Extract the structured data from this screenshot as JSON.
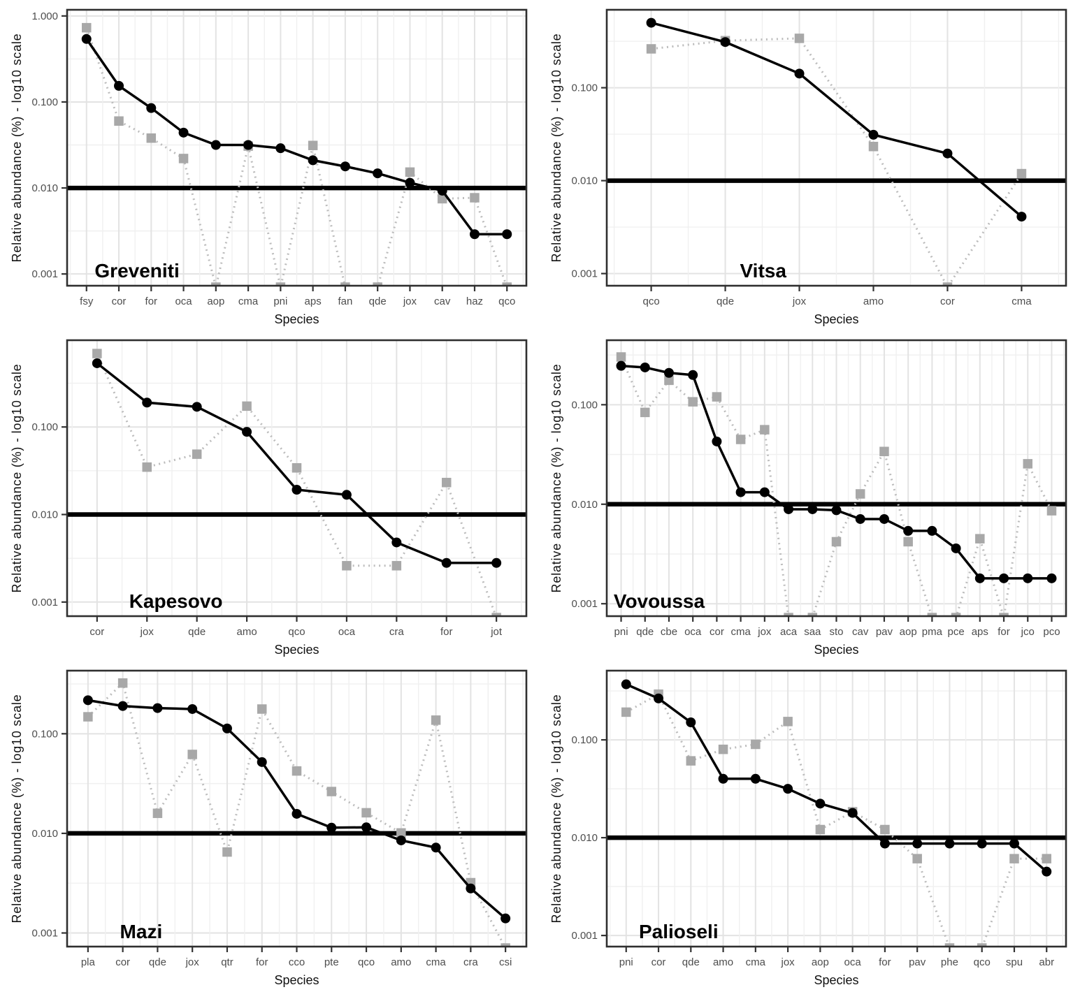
{
  "figure": {
    "xlabel": "Species",
    "ylabel": "Relative abundance (%) - log10 scale",
    "reference_line_y": 0.01,
    "layout": "2x3 grid of line panels, log10 y axis, thick black reference line at 0.010",
    "colors": {
      "black_series": "#000000",
      "gray_marker": "#a8a8a8",
      "gray_line": "#bcbcbc",
      "grid_major": "#e3e3e3",
      "grid_minor": "#f0f0f0",
      "panel_border": "#2f2f2f",
      "tick_label": "#4d4d4d",
      "background": "#ffffff"
    },
    "null_meaning": "gray-square series point plotted off-scale low, clipped at bottom panel edge"
  },
  "chart_data": [
    {
      "type": "line",
      "title": "Greveniti",
      "xlabel": "Species",
      "ylabel": "Relative abundance (%) - log10 scale",
      "x_categories": [
        "fsy",
        "cor",
        "for",
        "oca",
        "aop",
        "cma",
        "pni",
        "aps",
        "fan",
        "qde",
        "jox",
        "cav",
        "haz",
        "qco"
      ],
      "series": [
        {
          "name": "solid-black-circles",
          "marker": "circle",
          "style": "solid",
          "color": "#000000",
          "values": [
            0.54,
            0.154,
            0.085,
            0.044,
            0.0316,
            0.0316,
            0.029,
            0.021,
            0.0178,
            0.0148,
            0.0115,
            0.0093,
            0.0029,
            0.0029
          ]
        },
        {
          "name": "dotted-gray-squares",
          "marker": "square",
          "style": "dotted",
          "color": "#a8a8a8",
          "values": [
            0.73,
            0.06,
            0.038,
            0.022,
            null,
            0.0307,
            null,
            0.0312,
            null,
            null,
            0.0153,
            0.0075,
            0.0077,
            null
          ]
        }
      ],
      "ylim": [
        0.00073,
        1.18
      ],
      "yticks": [
        1,
        0.1,
        0.01,
        0.001
      ],
      "ytick_labels": [
        "1.000",
        "0.100",
        "0.010",
        "0.001"
      ],
      "reference_line": 0.01,
      "title_x_frac": 0.06
    },
    {
      "type": "line",
      "title": "Vitsa",
      "xlabel": "Species",
      "ylabel": "Relative abundance (%) - log10 scale",
      "x_categories": [
        "qco",
        "qde",
        "jox",
        "amo",
        "cor",
        "cma"
      ],
      "series": [
        {
          "name": "solid-black-circles",
          "marker": "circle",
          "style": "solid",
          "color": "#000000",
          "values": [
            0.5,
            0.31,
            0.142,
            0.0312,
            0.0196,
            0.0041
          ]
        },
        {
          "name": "dotted-gray-squares",
          "marker": "square",
          "style": "dotted",
          "color": "#a8a8a8",
          "values": [
            0.262,
            0.321,
            0.34,
            0.0233,
            null,
            0.0119
          ]
        }
      ],
      "ylim": [
        0.00074,
        0.69
      ],
      "yticks": [
        0.1,
        0.01,
        0.001
      ],
      "ytick_labels": [
        "0.100",
        "0.010",
        "0.001"
      ],
      "reference_line": 0.01,
      "title_x_frac": 0.29
    },
    {
      "type": "line",
      "title": "Kapesovo",
      "xlabel": "Species",
      "ylabel": "Relative abundance (%) - log10 scale",
      "x_categories": [
        "cor",
        "jox",
        "qde",
        "amo",
        "qco",
        "oca",
        "cra",
        "for",
        "jot"
      ],
      "series": [
        {
          "name": "solid-black-circles",
          "marker": "circle",
          "style": "solid",
          "color": "#000000",
          "values": [
            0.535,
            0.19,
            0.17,
            0.088,
            0.0192,
            0.0168,
            0.0048,
            0.0028,
            0.0028
          ]
        },
        {
          "name": "dotted-gray-squares",
          "marker": "square",
          "style": "dotted",
          "color": "#a8a8a8",
          "values": [
            0.69,
            0.0348,
            0.0489,
            0.173,
            0.0341,
            0.0026,
            0.0026,
            0.0232,
            null
          ]
        }
      ],
      "ylim": [
        0.00069,
        0.98
      ],
      "yticks": [
        0.1,
        0.01,
        0.001
      ],
      "ytick_labels": [
        "0.100",
        "0.010",
        "0.001"
      ],
      "reference_line": 0.01,
      "title_x_frac": 0.135
    },
    {
      "type": "line",
      "title": "Vovoussa",
      "xlabel": "Species",
      "ylabel": "Relative abundance (%) - log10 scale",
      "x_categories": [
        "pni",
        "qde",
        "cbe",
        "oca",
        "cor",
        "cma",
        "jox",
        "aca",
        "saa",
        "sto",
        "cav",
        "pav",
        "aop",
        "pma",
        "pce",
        "aps",
        "for",
        "jco",
        "pco"
      ],
      "series": [
        {
          "name": "solid-black-circles",
          "marker": "circle",
          "style": "solid",
          "color": "#000000",
          "values": [
            0.246,
            0.237,
            0.209,
            0.199,
            0.0427,
            0.0132,
            0.0132,
            0.0089,
            0.0089,
            0.0087,
            0.0071,
            0.0071,
            0.0054,
            0.0054,
            0.0036,
            0.0018,
            0.0018,
            0.0018,
            0.0018
          ]
        },
        {
          "name": "dotted-gray-squares",
          "marker": "square",
          "style": "dotted",
          "color": "#a8a8a8",
          "values": [
            0.302,
            0.0837,
            0.176,
            0.107,
            0.12,
            0.0448,
            0.0561,
            null,
            null,
            0.0042,
            0.0127,
            0.0339,
            0.0042,
            null,
            null,
            0.0045,
            null,
            0.0255,
            0.0086
          ]
        }
      ],
      "ylim": [
        0.00075,
        0.445
      ],
      "yticks": [
        0.1,
        0.01,
        0.001
      ],
      "ytick_labels": [
        "0.100",
        "0.010",
        "0.001"
      ],
      "reference_line": 0.01,
      "title_x_frac": 0.015
    },
    {
      "type": "line",
      "title": "Mazi",
      "xlabel": "Species",
      "ylabel": "Relative abundance (%) - log10 scale",
      "x_categories": [
        "pla",
        "cor",
        "qde",
        "jox",
        "qtr",
        "for",
        "cco",
        "pte",
        "qco",
        "amo",
        "cma",
        "cra",
        "csi"
      ],
      "series": [
        {
          "name": "solid-black-circles",
          "marker": "circle",
          "style": "solid",
          "color": "#000000",
          "values": [
            0.217,
            0.19,
            0.181,
            0.177,
            0.113,
            0.052,
            0.0157,
            0.0114,
            0.0115,
            0.0085,
            0.0072,
            0.0028,
            0.0014
          ]
        },
        {
          "name": "dotted-gray-squares",
          "marker": "square",
          "style": "dotted",
          "color": "#a8a8a8",
          "values": [
            0.148,
            0.323,
            0.0159,
            0.062,
            0.0065,
            0.177,
            0.0423,
            0.0263,
            0.0161,
            0.0101,
            0.137,
            0.0032,
            null
          ]
        }
      ],
      "ylim": [
        0.00073,
        0.43
      ],
      "yticks": [
        0.1,
        0.01,
        0.001
      ],
      "ytick_labels": [
        "0.100",
        "0.010",
        "0.001"
      ],
      "reference_line": 0.01,
      "title_x_frac": 0.115
    },
    {
      "type": "line",
      "title": "Palioseli",
      "xlabel": "Species",
      "ylabel": "Relative abundance (%) - log10 scale",
      "x_categories": [
        "pni",
        "cor",
        "qde",
        "amo",
        "cma",
        "jox",
        "aop",
        "oca",
        "for",
        "pav",
        "phe",
        "qco",
        "spu",
        "abr"
      ],
      "series": [
        {
          "name": "solid-black-circles",
          "marker": "circle",
          "style": "solid",
          "color": "#000000",
          "values": [
            0.37,
            0.265,
            0.151,
            0.04,
            0.04,
            0.0316,
            0.0223,
            0.0179,
            0.0087,
            0.0087,
            0.0087,
            0.0087,
            0.0087,
            0.0045
          ]
        },
        {
          "name": "dotted-gray-squares",
          "marker": "square",
          "style": "dotted",
          "color": "#a8a8a8",
          "values": [
            0.192,
            0.293,
            0.061,
            0.08,
            0.09,
            0.154,
            0.0121,
            0.0184,
            0.0121,
            0.0061,
            null,
            null,
            0.0061,
            0.0061
          ]
        }
      ],
      "ylim": [
        0.00077,
        0.51
      ],
      "yticks": [
        0.1,
        0.01,
        0.001
      ],
      "ytick_labels": [
        "0.100",
        "0.010",
        "0.001"
      ],
      "reference_line": 0.01,
      "title_x_frac": 0.07
    }
  ]
}
